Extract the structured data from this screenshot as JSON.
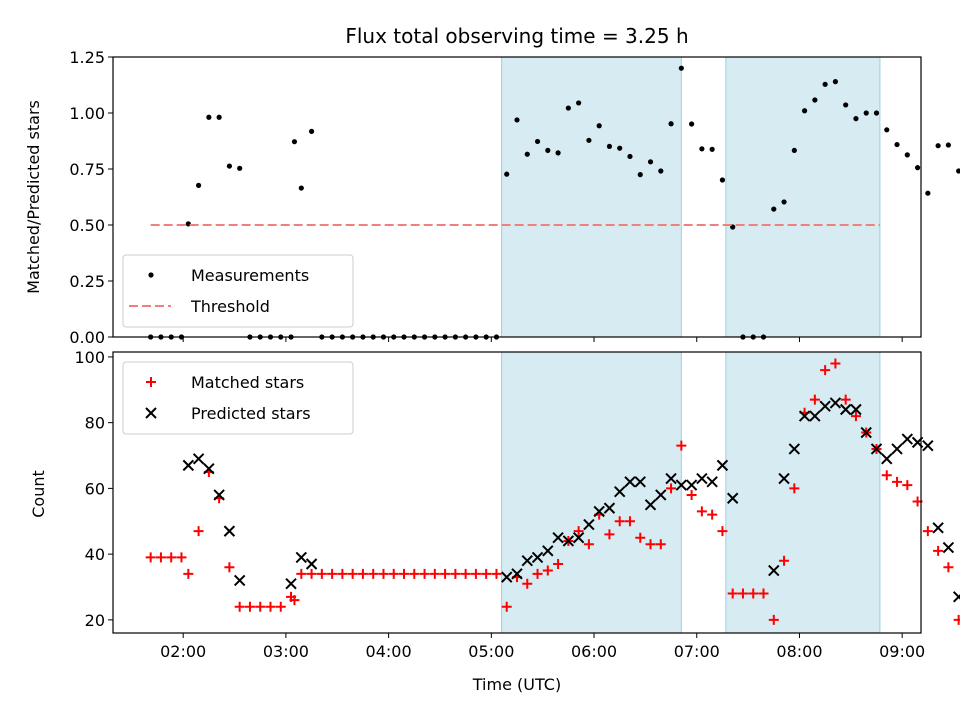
{
  "chart_data": [
    {
      "type": "scatter",
      "title": "Flux total observing time = 3.25 h",
      "xlabel": "",
      "ylabel": "Matched/Predicted stars",
      "ylim": [
        0,
        1.25
      ],
      "xlim": [
        "01:19",
        "09:11"
      ],
      "yticks": [
        "0.00",
        "0.25",
        "0.50",
        "0.75",
        "1.00",
        "1.25"
      ],
      "shaded_intervals": [
        [
          "05:06",
          "06:51"
        ],
        [
          "07:17",
          "08:47"
        ]
      ],
      "legend": {
        "placement": "lower-left",
        "entries": [
          "Measurements",
          "Threshold"
        ]
      },
      "series": [
        {
          "name": "Measurements",
          "marker": "dot",
          "color": "#000000",
          "points": [
            [
              "01:41",
              0
            ],
            [
              "01:47",
              0
            ],
            [
              "01:53",
              0
            ],
            [
              "01:59",
              0
            ],
            [
              "02:03",
              0.505
            ],
            [
              "02:09",
              0.677
            ],
            [
              "02:15",
              0.981
            ],
            [
              "02:21",
              0.981
            ],
            [
              "02:27",
              0.763
            ],
            [
              "02:33",
              0.753
            ],
            [
              "02:39",
              0
            ],
            [
              "02:45",
              0
            ],
            [
              "02:51",
              0
            ],
            [
              "02:57",
              0
            ],
            [
              "03:03",
              0
            ],
            [
              "03:05",
              0.872
            ],
            [
              "03:09",
              0.665
            ],
            [
              "03:15",
              0.918
            ],
            [
              "03:21",
              0
            ],
            [
              "03:27",
              0
            ],
            [
              "03:33",
              0
            ],
            [
              "03:39",
              0
            ],
            [
              "03:45",
              0
            ],
            [
              "03:51",
              0
            ],
            [
              "03:57",
              0
            ],
            [
              "04:03",
              0
            ],
            [
              "04:09",
              0
            ],
            [
              "04:15",
              0
            ],
            [
              "04:21",
              0
            ],
            [
              "04:27",
              0
            ],
            [
              "04:33",
              0
            ],
            [
              "04:39",
              0
            ],
            [
              "04:45",
              0
            ],
            [
              "04:51",
              0
            ],
            [
              "04:57",
              0
            ],
            [
              "05:03",
              0
            ],
            [
              "05:09",
              0.727
            ],
            [
              "05:15",
              0.969
            ],
            [
              "05:21",
              0.816
            ],
            [
              "05:27",
              0.873
            ],
            [
              "05:33",
              0.833
            ],
            [
              "05:39",
              0.822
            ],
            [
              "05:45",
              1.022
            ],
            [
              "05:51",
              1.045
            ],
            [
              "05:57",
              0.878
            ],
            [
              "06:03",
              0.943
            ],
            [
              "06:09",
              0.851
            ],
            [
              "06:15",
              0.843
            ],
            [
              "06:21",
              0.806
            ],
            [
              "06:27",
              0.725
            ],
            [
              "06:33",
              0.782
            ],
            [
              "06:39",
              0.741
            ],
            [
              "06:45",
              0.952
            ],
            [
              "06:51",
              1.2
            ],
            [
              "06:57",
              0.951
            ],
            [
              "07:03",
              0.84
            ],
            [
              "07:09",
              0.838
            ],
            [
              "07:15",
              0.701
            ],
            [
              "07:21",
              0.491
            ],
            [
              "07:27",
              0
            ],
            [
              "07:33",
              0
            ],
            [
              "07:39",
              0
            ],
            [
              "07:45",
              0.571
            ],
            [
              "07:51",
              0.603
            ],
            [
              "07:57",
              0.833
            ],
            [
              "08:03",
              1.01
            ],
            [
              "08:09",
              1.058
            ],
            [
              "08:15",
              1.128
            ],
            [
              "08:21",
              1.14
            ],
            [
              "08:27",
              1.036
            ],
            [
              "08:33",
              0.975
            ],
            [
              "08:39",
              1.0
            ],
            [
              "08:45",
              1.0
            ],
            [
              "08:51",
              0.925
            ],
            [
              "08:57",
              0.859
            ],
            [
              "09:03",
              0.813
            ],
            [
              "09:09",
              0.756
            ],
            [
              "09:15",
              0.642
            ],
            [
              "09:21",
              0.854
            ],
            [
              "09:27",
              0.857
            ],
            [
              "09:33",
              0.741
            ]
          ]
        },
        {
          "name": "Threshold",
          "marker": "dashed-line",
          "color": "#f08080",
          "x": [
            "01:41",
            "08:47"
          ],
          "values": [
            0.5,
            0.5
          ]
        }
      ]
    },
    {
      "type": "scatter",
      "title": "",
      "xlabel": "Time (UTC)",
      "ylabel": "Count",
      "ylim": [
        16,
        101.5
      ],
      "xlim": [
        "01:19",
        "09:11"
      ],
      "xticks": [
        "02:00",
        "03:00",
        "04:00",
        "05:00",
        "06:00",
        "07:00",
        "08:00",
        "09:00"
      ],
      "yticks": [
        "20",
        "40",
        "60",
        "80",
        "100"
      ],
      "shaded_intervals": [
        [
          "05:06",
          "06:51"
        ],
        [
          "07:17",
          "08:47"
        ]
      ],
      "legend": {
        "placement": "upper-left",
        "entries": [
          "Matched stars",
          "Predicted stars"
        ]
      },
      "series": [
        {
          "name": "Matched stars",
          "marker": "plus",
          "color": "#ff0000",
          "points": [
            [
              "01:41",
              39
            ],
            [
              "01:47",
              39
            ],
            [
              "01:53",
              39
            ],
            [
              "01:59",
              39
            ],
            [
              "02:03",
              34
            ],
            [
              "02:09",
              47
            ],
            [
              "02:15",
              65
            ],
            [
              "02:21",
              57
            ],
            [
              "02:27",
              36
            ],
            [
              "02:33",
              24
            ],
            [
              "02:39",
              24
            ],
            [
              "02:45",
              24
            ],
            [
              "02:51",
              24
            ],
            [
              "02:57",
              24
            ],
            [
              "03:03",
              27
            ],
            [
              "03:05",
              26
            ],
            [
              "03:09",
              34
            ],
            [
              "03:15",
              34
            ],
            [
              "03:21",
              34
            ],
            [
              "03:27",
              34
            ],
            [
              "03:33",
              34
            ],
            [
              "03:39",
              34
            ],
            [
              "03:45",
              34
            ],
            [
              "03:51",
              34
            ],
            [
              "03:57",
              34
            ],
            [
              "04:03",
              34
            ],
            [
              "04:09",
              34
            ],
            [
              "04:15",
              34
            ],
            [
              "04:21",
              34
            ],
            [
              "04:27",
              34
            ],
            [
              "04:33",
              34
            ],
            [
              "04:39",
              34
            ],
            [
              "04:45",
              34
            ],
            [
              "04:51",
              34
            ],
            [
              "04:57",
              34
            ],
            [
              "05:03",
              34
            ],
            [
              "05:09",
              24
            ],
            [
              "05:15",
              33
            ],
            [
              "05:21",
              31
            ],
            [
              "05:27",
              34
            ],
            [
              "05:33",
              35
            ],
            [
              "05:39",
              37
            ],
            [
              "05:45",
              44
            ],
            [
              "05:51",
              47
            ],
            [
              "05:57",
              43
            ],
            [
              "06:03",
              52
            ],
            [
              "06:09",
              46
            ],
            [
              "06:15",
              50
            ],
            [
              "06:21",
              50
            ],
            [
              "06:27",
              45
            ],
            [
              "06:33",
              43
            ],
            [
              "06:39",
              43
            ],
            [
              "06:45",
              60
            ],
            [
              "06:51",
              73
            ],
            [
              "06:57",
              58
            ],
            [
              "07:03",
              53
            ],
            [
              "07:09",
              52
            ],
            [
              "07:15",
              47
            ],
            [
              "07:21",
              28
            ],
            [
              "07:27",
              28
            ],
            [
              "07:33",
              28
            ],
            [
              "07:39",
              28
            ],
            [
              "07:45",
              20
            ],
            [
              "07:51",
              38
            ],
            [
              "07:57",
              60
            ],
            [
              "08:03",
              83
            ],
            [
              "08:09",
              87
            ],
            [
              "08:15",
              96
            ],
            [
              "08:21",
              98
            ],
            [
              "08:27",
              87
            ],
            [
              "08:33",
              82
            ],
            [
              "08:39",
              77
            ],
            [
              "08:45",
              72
            ],
            [
              "08:51",
              64
            ],
            [
              "08:57",
              62
            ],
            [
              "09:03",
              61
            ],
            [
              "09:09",
              56
            ],
            [
              "09:15",
              47
            ],
            [
              "09:21",
              41
            ],
            [
              "09:27",
              36
            ],
            [
              "09:33",
              20
            ]
          ]
        },
        {
          "name": "Predicted stars",
          "marker": "x",
          "color": "#000000",
          "points": [
            [
              "02:03",
              67
            ],
            [
              "02:09",
              69
            ],
            [
              "02:15",
              66
            ],
            [
              "02:21",
              58
            ],
            [
              "02:27",
              47
            ],
            [
              "02:33",
              32
            ],
            [
              "03:03",
              31
            ],
            [
              "03:09",
              39
            ],
            [
              "03:15",
              37
            ],
            [
              "05:09",
              33
            ],
            [
              "05:15",
              34
            ],
            [
              "05:21",
              38
            ],
            [
              "05:27",
              39
            ],
            [
              "05:33",
              41
            ],
            [
              "05:39",
              45
            ],
            [
              "05:45",
              44
            ],
            [
              "05:51",
              45
            ],
            [
              "05:57",
              49
            ],
            [
              "06:03",
              53
            ],
            [
              "06:09",
              54
            ],
            [
              "06:15",
              59
            ],
            [
              "06:21",
              62
            ],
            [
              "06:27",
              62
            ],
            [
              "06:33",
              55
            ],
            [
              "06:39",
              58
            ],
            [
              "06:45",
              63
            ],
            [
              "06:51",
              61
            ],
            [
              "06:57",
              61
            ],
            [
              "07:03",
              63
            ],
            [
              "07:09",
              62
            ],
            [
              "07:15",
              67
            ],
            [
              "07:21",
              57
            ],
            [
              "07:45",
              35
            ],
            [
              "07:51",
              63
            ],
            [
              "07:57",
              72
            ],
            [
              "08:03",
              82
            ],
            [
              "08:09",
              82
            ],
            [
              "08:15",
              85
            ],
            [
              "08:21",
              86
            ],
            [
              "08:27",
              84
            ],
            [
              "08:33",
              84
            ],
            [
              "08:39",
              77
            ],
            [
              "08:45",
              72
            ],
            [
              "08:51",
              69
            ],
            [
              "08:57",
              72
            ],
            [
              "09:03",
              75
            ],
            [
              "09:09",
              74
            ],
            [
              "09:15",
              73
            ],
            [
              "09:21",
              48
            ],
            [
              "09:27",
              42
            ],
            [
              "09:33",
              27
            ]
          ]
        }
      ]
    }
  ]
}
